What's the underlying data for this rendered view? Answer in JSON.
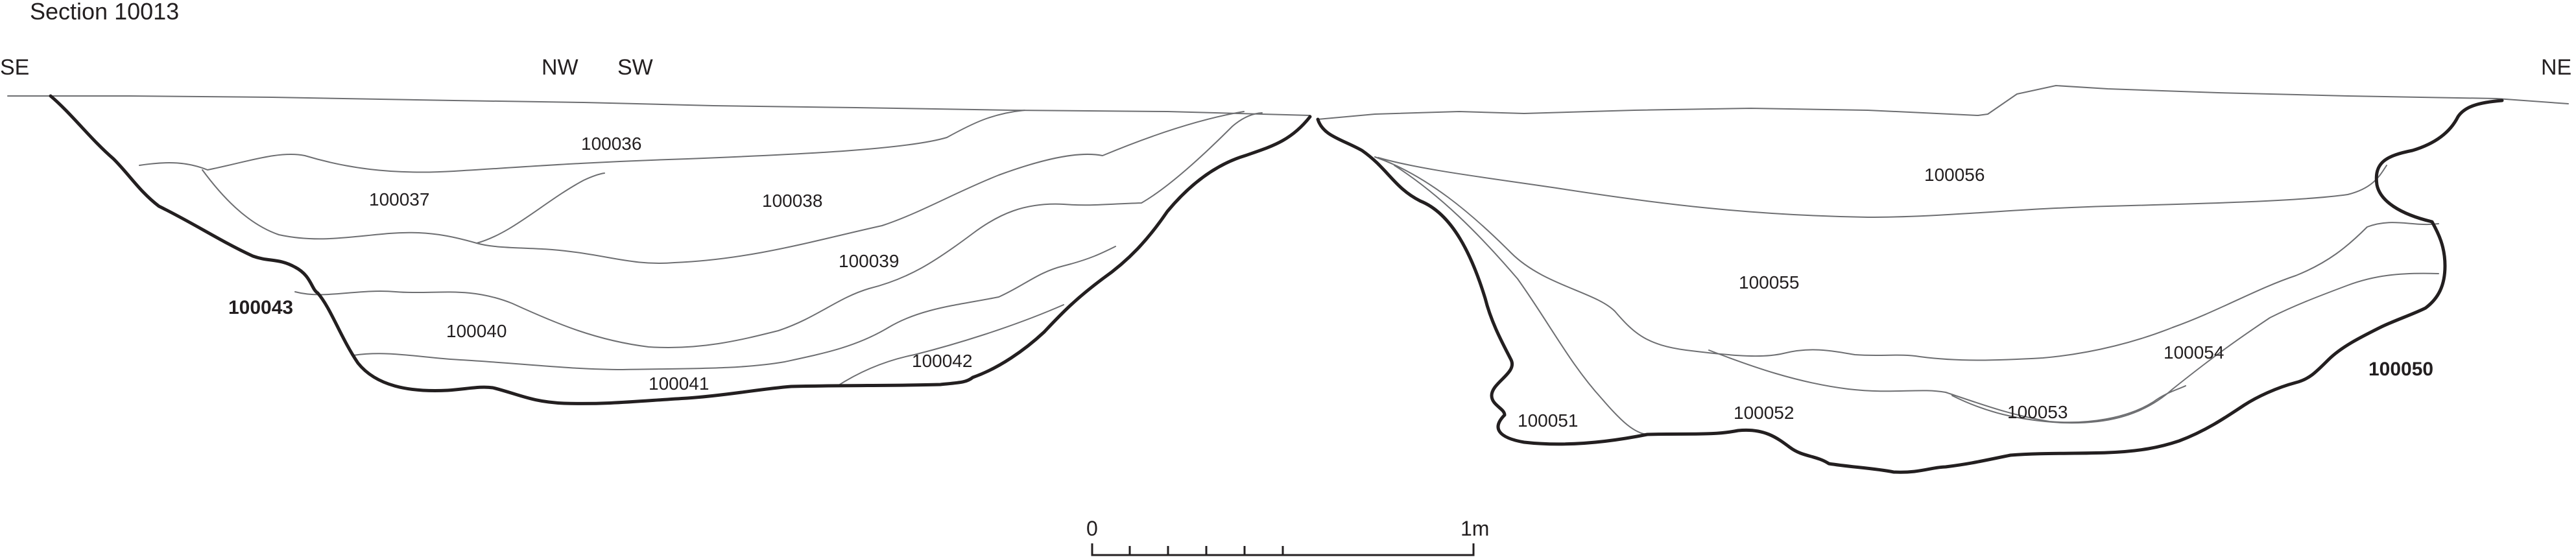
{
  "title": "Section 10013",
  "orientation": {
    "left": "SE",
    "middle_left": "NW",
    "middle_right": "SW",
    "right": "NE"
  },
  "contexts": {
    "c100036": "100036",
    "c100037": "100037",
    "c100038": "100038",
    "c100039": "100039",
    "c100040": "100040",
    "c100041": "100041",
    "c100042": "100042",
    "c100051": "100051",
    "c100052": "100052",
    "c100053": "100053",
    "c100054": "100054",
    "c100055": "100055",
    "c100056": "100056"
  },
  "cuts": {
    "left": "100043",
    "right": "100050"
  },
  "scale_bar": {
    "start_label": "0",
    "end_label": "1m"
  }
}
